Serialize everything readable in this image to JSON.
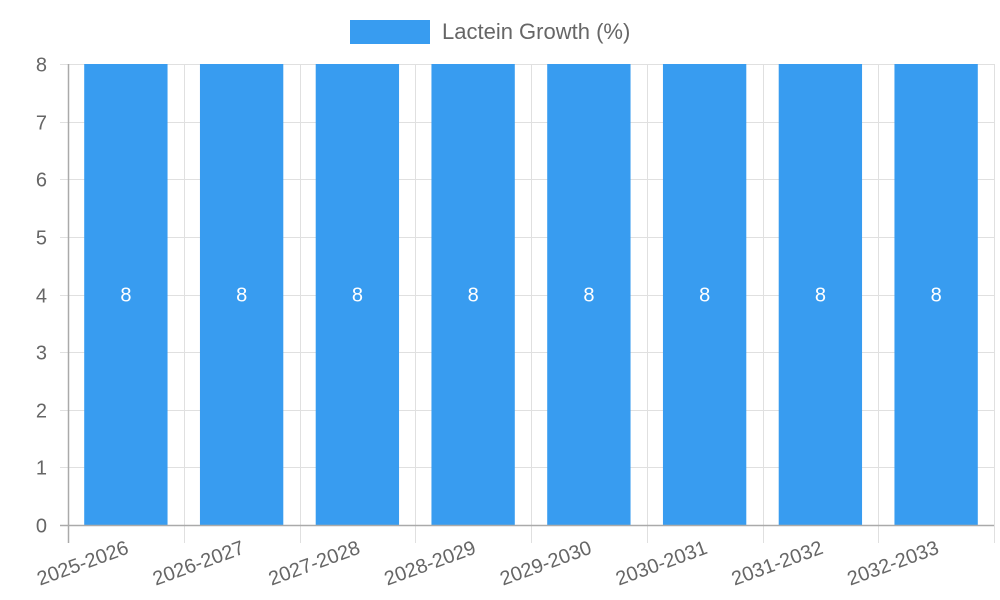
{
  "chart_data": {
    "type": "bar",
    "title": "",
    "categories": [
      "2025-2026",
      "2026-2027",
      "2027-2028",
      "2028-2029",
      "2029-2030",
      "2030-2031",
      "2031-2032",
      "2032-2033"
    ],
    "series": [
      {
        "name": "Lactein Growth (%)",
        "values": [
          8,
          8,
          8,
          8,
          8,
          8,
          8,
          8
        ],
        "color": "#389CF0"
      }
    ],
    "xlabel": "",
    "ylabel": "",
    "ylim": [
      0,
      8
    ],
    "yticks": [
      0,
      1,
      2,
      3,
      4,
      5,
      6,
      7,
      8
    ],
    "grid": true,
    "legend_position": "top",
    "data_labels": true,
    "x_tick_rotation": -20
  },
  "legend": {
    "label": "Lactein Growth (%)"
  }
}
